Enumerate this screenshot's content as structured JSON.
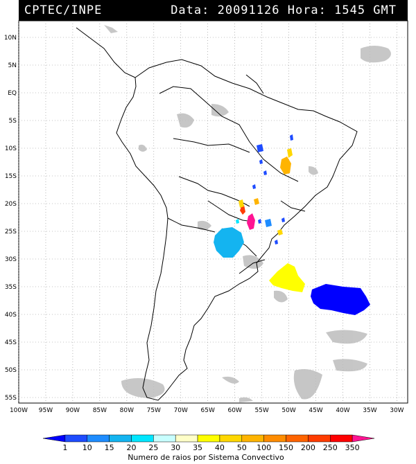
{
  "header": {
    "organization": "CPTEC/INPE",
    "datetime": "Data: 20091126 Hora: 1545 GMT"
  },
  "map": {
    "lat_labels": [
      "10N",
      "5N",
      "EQ",
      "5S",
      "10S",
      "15S",
      "20S",
      "25S",
      "30S",
      "35S",
      "40S",
      "45S",
      "50S",
      "55S"
    ],
    "lon_labels": [
      "100W",
      "95W",
      "90W",
      "85W",
      "80W",
      "75W",
      "70W",
      "65W",
      "60W",
      "55W",
      "50W",
      "45W",
      "40W",
      "35W",
      "30W"
    ],
    "lat_range": [
      -56,
      13
    ],
    "lon_range": [
      -100,
      -28
    ]
  },
  "legend": {
    "caption": "Numero de raios por Sistema Convectivo",
    "ticks": [
      "1",
      "10",
      "15",
      "20",
      "25",
      "30",
      "35",
      "40",
      "50",
      "100",
      "150",
      "200",
      "250",
      "350"
    ],
    "colors": [
      "#0000ff",
      "#1e4cff",
      "#1e8cff",
      "#14b4f0",
      "#00e6ff",
      "#c8ffff",
      "#ffffc8",
      "#ffff00",
      "#ffd700",
      "#ffb400",
      "#ff8c00",
      "#ff6400",
      "#ff3c00",
      "#ff0000",
      "#ff1493"
    ]
  },
  "systems": [
    {
      "label": "",
      "color": "#0000ff"
    },
    {
      "label": "",
      "color": "#ffff00"
    },
    {
      "label": "",
      "color": "#14b4f0"
    }
  ]
}
